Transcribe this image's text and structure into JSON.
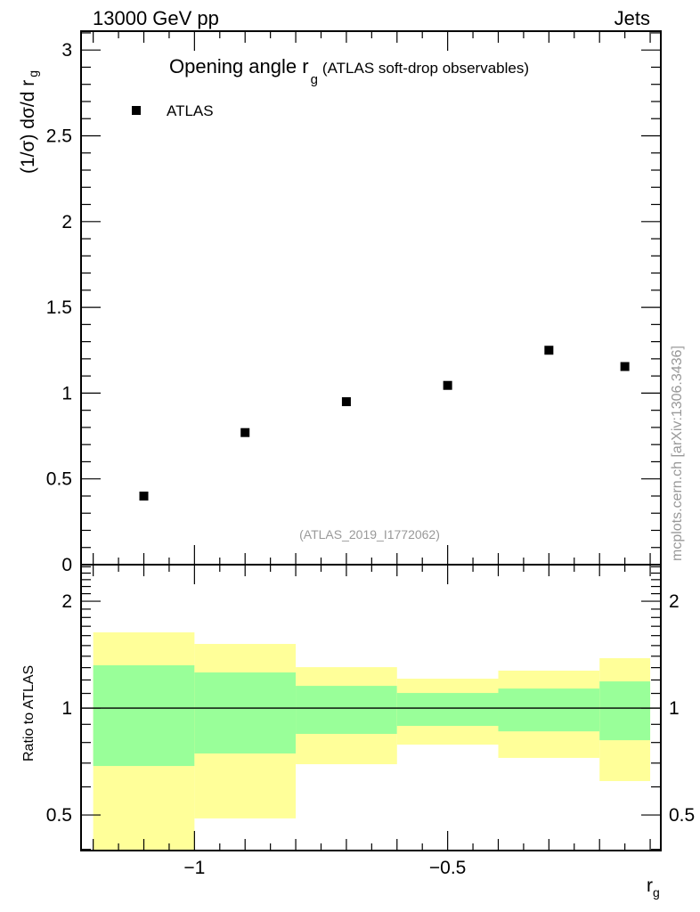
{
  "header": {
    "left": "13000 GeV pp",
    "right": "Jets"
  },
  "side_label": "mcplots.cern.ch [arXiv:1306.3436]",
  "analysis_id": "(ATLAS_2019_I1772062)",
  "colors": {
    "stat": "#99ff99",
    "total": "#ffff99",
    "marker": "#000000",
    "watermark": "#999999"
  },
  "chart_data": [
    {
      "type": "scatter",
      "title": "Opening angle r",
      "title_sub": "g",
      "title_suffix": "(ATLAS soft-drop observables)",
      "ylabel": "(1/σ) dσ/d r",
      "ylabel_sub": "g",
      "legend": [
        {
          "label": "ATLAS",
          "marker": "square"
        }
      ],
      "legend_position": "top-left",
      "xlim": [
        -1.224,
        -0.079
      ],
      "ylim": [
        0,
        3.11
      ],
      "yticks": [
        0,
        0.5,
        1,
        1.5,
        2,
        2.5,
        3
      ],
      "ytick_labels": [
        "0",
        "0.5",
        "1",
        "1.5",
        "2",
        "2.5",
        "3"
      ],
      "series": [
        {
          "name": "ATLAS",
          "x": [
            -1.1,
            -0.9,
            -0.7,
            -0.5,
            -0.3,
            -0.15
          ],
          "y": [
            0.4,
            0.77,
            0.95,
            1.045,
            1.25,
            1.155
          ]
        }
      ]
    },
    {
      "type": "area",
      "ylabel": "Ratio to ATLAS",
      "xlabel": "r",
      "xlabel_sub": "g",
      "yscale": "log",
      "xlim": [
        -1.224,
        -0.079
      ],
      "ylim": [
        0.397,
        2.535
      ],
      "yticks": [
        0.5,
        1,
        2
      ],
      "ytick_labels": [
        "0.5",
        "1",
        "2"
      ],
      "xticks": [
        -1,
        -0.5
      ],
      "xtick_labels": [
        "−1",
        "−0.5"
      ],
      "bin_edges": [
        -1.2,
        -1.0,
        -0.8,
        -0.6,
        -0.4,
        -0.2,
        -0.1
      ],
      "reference": 1,
      "stat_band": {
        "low": [
          0.687,
          0.745,
          0.846,
          0.891,
          0.86,
          0.812
        ],
        "high": [
          1.32,
          1.26,
          1.155,
          1.103,
          1.135,
          1.189
        ]
      },
      "total_band": {
        "low": [
          0.3,
          0.489,
          0.695,
          0.789,
          0.724,
          0.623
        ],
        "high": [
          1.634,
          1.516,
          1.304,
          1.21,
          1.275,
          1.382
        ]
      }
    }
  ]
}
